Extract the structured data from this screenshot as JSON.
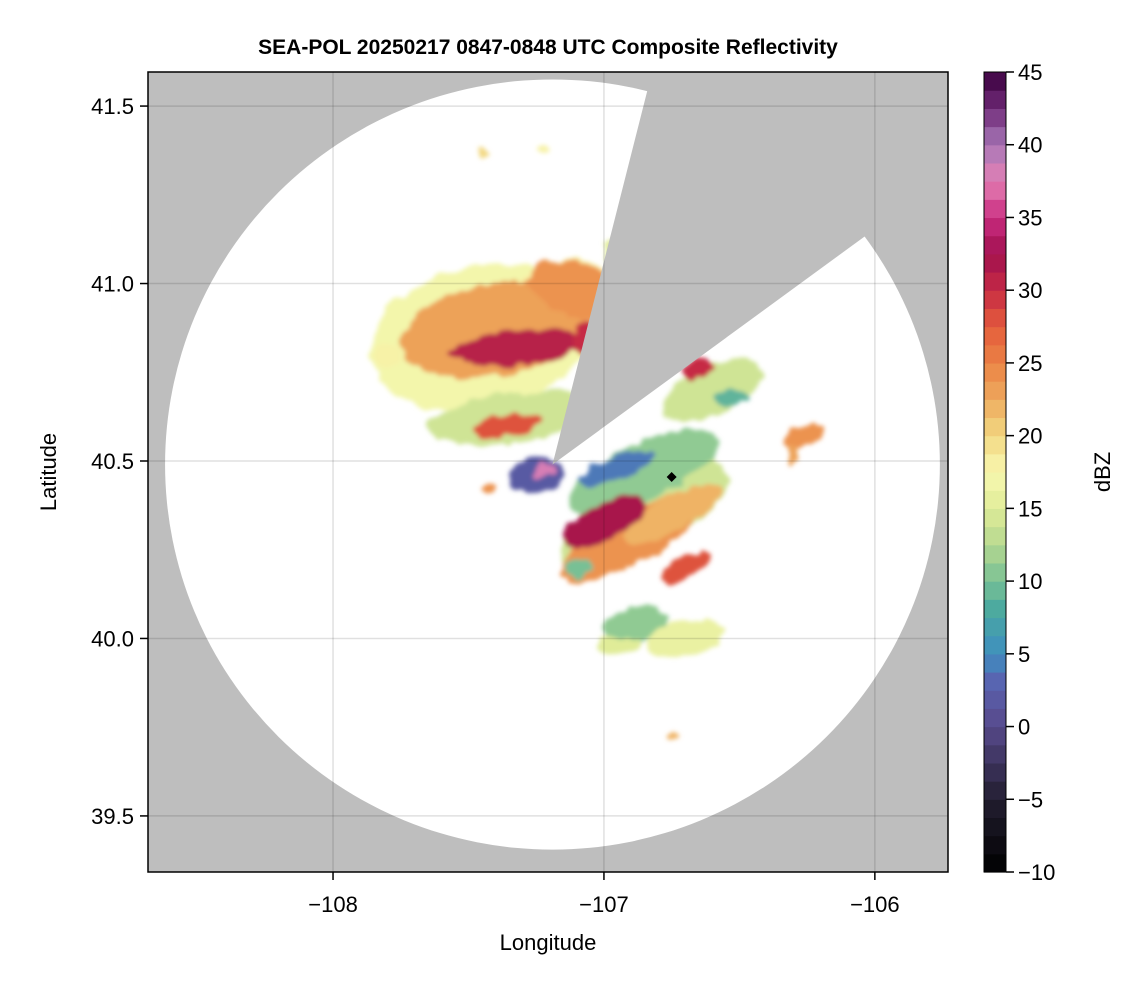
{
  "chart_data": {
    "type": "heatmap",
    "title": "SEA-POL 20250217 0847-0848 UTC Composite Reflectivity",
    "xlabel": "Longitude",
    "ylabel": "Latitude",
    "xlim": [
      -108.683,
      -105.73
    ],
    "ylim": [
      39.342,
      41.596
    ],
    "xticks": [
      -108,
      -107,
      -106
    ],
    "xtick_labels": [
      "−108",
      "−107",
      "−106"
    ],
    "yticks": [
      39.5,
      40.0,
      40.5,
      41.0,
      41.5
    ],
    "ytick_labels": [
      "39.5",
      "40.0",
      "40.5",
      "41.0",
      "41.5"
    ],
    "grid": true,
    "colorbar": {
      "label": "dBZ",
      "range": [
        -10,
        45
      ],
      "step": 1.25,
      "ticks": [
        -10,
        -5,
        0,
        5,
        10,
        15,
        20,
        25,
        30,
        35,
        40,
        45
      ],
      "tick_labels": [
        "−10",
        "−5",
        "0",
        "5",
        "10",
        "15",
        "20",
        "25",
        "30",
        "35",
        "40",
        "45"
      ],
      "colormap": [
        [
          -10,
          "#000000"
        ],
        [
          -5,
          "#221e30"
        ],
        [
          0,
          "#57498a"
        ],
        [
          3,
          "#5a62b0"
        ],
        [
          5,
          "#3f8fc0"
        ],
        [
          8,
          "#4aa8a0"
        ],
        [
          10,
          "#78c095"
        ],
        [
          12.5,
          "#b5d890"
        ],
        [
          15,
          "#e0ec98"
        ],
        [
          17.5,
          "#f8f8b0"
        ],
        [
          20,
          "#f2d882"
        ],
        [
          22.5,
          "#eeaa5e"
        ],
        [
          25,
          "#eb8345"
        ],
        [
          27.5,
          "#e45c3c"
        ],
        [
          30,
          "#c62a44"
        ],
        [
          32.5,
          "#a1104e"
        ],
        [
          35,
          "#c92c80"
        ],
        [
          37.5,
          "#e480b4"
        ],
        [
          40,
          "#a878b8"
        ],
        [
          42.5,
          "#702a78"
        ],
        [
          45,
          "#3a003e"
        ]
      ]
    },
    "radar": {
      "center": [
        -107.19,
        40.49
      ],
      "range_lon_deg": 1.43,
      "range_lat_deg": 1.085,
      "blocked_sector_edges": [
        [
          -106.845,
          41.528
        ],
        [
          -106.06,
          41.12
        ]
      ]
    },
    "marker": {
      "lon": -106.75,
      "lat": 40.455,
      "symbol": "diamond"
    },
    "echo_cells": [
      [
        -107.45,
        40.85,
        0.42,
        0.2,
        -12,
        17
      ],
      [
        -107.1,
        40.95,
        0.15,
        0.16,
        -70,
        18
      ],
      [
        -107.35,
        40.62,
        0.3,
        0.07,
        -8,
        14
      ],
      [
        -106.85,
        40.35,
        0.35,
        0.1,
        -28,
        14
      ],
      [
        -106.85,
        40.47,
        0.3,
        0.08,
        -25,
        11
      ],
      [
        -106.6,
        40.7,
        0.2,
        0.07,
        -25,
        14
      ],
      [
        -107.4,
        40.87,
        0.35,
        0.13,
        -10,
        23
      ],
      [
        -107.1,
        40.98,
        0.1,
        0.14,
        -70,
        24
      ],
      [
        -106.9,
        40.28,
        0.3,
        0.07,
        -28,
        24
      ],
      [
        -106.75,
        40.35,
        0.2,
        0.05,
        -28,
        22
      ],
      [
        -107.32,
        40.82,
        0.25,
        0.05,
        -6,
        31
      ],
      [
        -107.05,
        40.84,
        0.08,
        0.05,
        0,
        30
      ],
      [
        -107.0,
        40.33,
        0.17,
        0.05,
        -28,
        32
      ],
      [
        -106.7,
        40.2,
        0.1,
        0.03,
        -28,
        28
      ],
      [
        -107.35,
        40.6,
        0.12,
        0.03,
        -10,
        28
      ],
      [
        -106.65,
        40.76,
        0.06,
        0.03,
        -20,
        30
      ],
      [
        -107.25,
        40.46,
        0.1,
        0.05,
        -10,
        2
      ],
      [
        -107.22,
        40.47,
        0.04,
        0.02,
        -20,
        38
      ],
      [
        -106.95,
        40.48,
        0.15,
        0.03,
        -20,
        4
      ],
      [
        -106.53,
        40.68,
        0.07,
        0.025,
        0,
        9
      ],
      [
        -106.26,
        40.57,
        0.08,
        0.03,
        -15,
        24
      ],
      [
        -106.3,
        40.52,
        0.02,
        0.03,
        0,
        23
      ],
      [
        -106.88,
        40.04,
        0.12,
        0.05,
        -10,
        11
      ],
      [
        -106.7,
        40.0,
        0.15,
        0.05,
        -10,
        16
      ],
      [
        -107.1,
        40.2,
        0.05,
        0.03,
        -25,
        10
      ],
      [
        -106.95,
        39.98,
        0.08,
        0.03,
        0,
        15
      ],
      [
        -107.45,
        41.37,
        0.02,
        0.01,
        0,
        20
      ],
      [
        -107.22,
        41.38,
        0.02,
        0.01,
        0,
        18
      ],
      [
        -106.98,
        41.1,
        0.02,
        0.03,
        0,
        15
      ],
      [
        -107.8,
        40.8,
        0.05,
        0.04,
        0,
        18
      ],
      [
        -107.42,
        40.42,
        0.03,
        0.015,
        -20,
        24
      ],
      [
        -106.75,
        39.72,
        0.02,
        0.01,
        0,
        22
      ]
    ]
  }
}
